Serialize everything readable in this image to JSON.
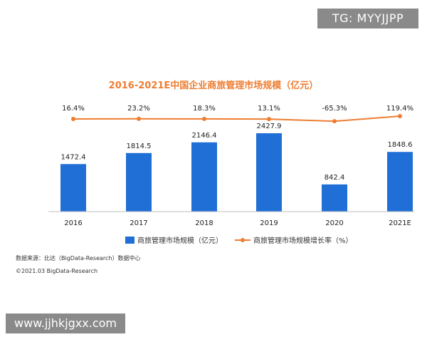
{
  "watermarks": {
    "top": "TG: MYYJJPP",
    "bottom": "www.jjhkjgxx.com"
  },
  "footer": {
    "source": "数据来源：比达（BigData-Research）数据中心",
    "copyright": "©2021.03 BigData-Research"
  },
  "colors": {
    "bar": "#1f6fd6",
    "line": "#ee7d31",
    "title": "#ee7d31"
  },
  "chart_data": {
    "type": "bar",
    "title": "2016-2021E中国企业商旅管理市场规模（亿元）",
    "categories": [
      "2016",
      "2017",
      "2018",
      "2019",
      "2020",
      "2021E"
    ],
    "series": [
      {
        "name": "商旅管理市场规模（亿元）",
        "type": "bar",
        "values": [
          1472.4,
          1814.5,
          2146.4,
          2427.9,
          842.4,
          1848.6
        ],
        "labels": [
          "1472.4",
          "1814.5",
          "2146.4",
          "2427.9",
          "842.4",
          "1848.6"
        ]
      },
      {
        "name": "商旅管理市场规模增长率（%）",
        "type": "line",
        "values": [
          16.4,
          23.2,
          18.3,
          13.1,
          -65.3,
          119.4
        ],
        "labels": [
          "16.4%",
          "23.2%",
          "18.3%",
          "13.1%",
          "-65.3%",
          "119.4%"
        ]
      }
    ],
    "ylim": [
      0,
      2600
    ],
    "legend_position": "bottom",
    "grid": false
  }
}
